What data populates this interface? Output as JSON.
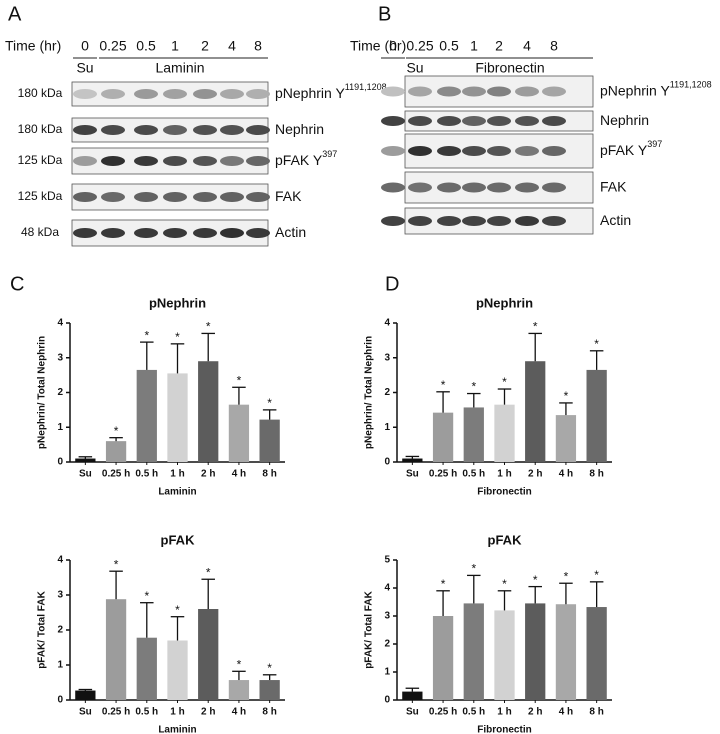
{
  "blots": [
    {
      "letter": "A",
      "time_label": "Time (hr)",
      "times": [
        "0",
        "0.25",
        "0.5",
        "1",
        "2",
        "4",
        "8"
      ],
      "su": "Su",
      "treatment": "Laminin",
      "rows": [
        {
          "kda": "180 kDa",
          "label": "pNephrin Y",
          "sup": "1191,1208"
        },
        {
          "kda": "180 kDa",
          "label": "Nephrin"
        },
        {
          "kda": "125 kDa",
          "label": "pFAK Y",
          "sup": "397"
        },
        {
          "kda": "125 kDa",
          "label": "FAK"
        },
        {
          "kda": "48 kDa",
          "label": "Actin"
        }
      ]
    },
    {
      "letter": "B",
      "time_label": "Time (hr)",
      "times": [
        "0",
        "0.25",
        "0.5",
        "1",
        "2",
        "4",
        "8"
      ],
      "su": "Su",
      "treatment": "Fibronectin",
      "rows": [
        {
          "label": "pNephrin Y",
          "sup": "1191,1208"
        },
        {
          "label": "Nephrin"
        },
        {
          "label": "pFAK Y",
          "sup": "397"
        },
        {
          "label": "FAK"
        },
        {
          "label": "Actin"
        }
      ]
    }
  ],
  "chart_letters": [
    "C",
    "D"
  ],
  "chart_data": [
    {
      "type": "bar",
      "title": "pNephrin",
      "x_label": "Laminin",
      "y_label": "pNephrin/ Total Nephrin",
      "categories": [
        "Su",
        "0.25 h",
        "0.5 h",
        "1 h",
        "2 h",
        "4 h",
        "8 h"
      ],
      "values": [
        0.1,
        0.6,
        2.65,
        2.55,
        2.9,
        1.65,
        1.22
      ],
      "errors": [
        0.05,
        0.1,
        0.8,
        0.85,
        0.8,
        0.5,
        0.28
      ],
      "significance": [
        null,
        "*",
        "*",
        "*",
        "*",
        "*",
        "*"
      ],
      "colors": [
        "#111111",
        "#9c9c9c",
        "#7c7c7c",
        "#d2d2d2",
        "#5c5c5c",
        "#a8a8a8",
        "#6a6a6a"
      ],
      "ylim": [
        0,
        4
      ],
      "yticks": [
        0,
        1,
        2,
        3,
        4
      ]
    },
    {
      "type": "bar",
      "title": "pNephrin",
      "x_label": "Fibronectin",
      "y_label": "pNephrin/ Total Nephrin",
      "categories": [
        "Su",
        "0.25 h",
        "0.5 h",
        "1 h",
        "2 h",
        "4 h",
        "8 h"
      ],
      "values": [
        0.1,
        1.42,
        1.57,
        1.65,
        2.9,
        1.35,
        2.65
      ],
      "errors": [
        0.06,
        0.6,
        0.4,
        0.45,
        0.8,
        0.35,
        0.55
      ],
      "significance": [
        null,
        "*",
        "*",
        "*",
        "*",
        "*",
        "*"
      ],
      "colors": [
        "#111111",
        "#9c9c9c",
        "#7c7c7c",
        "#d2d2d2",
        "#5c5c5c",
        "#a8a8a8",
        "#6a6a6a"
      ],
      "ylim": [
        0,
        4
      ],
      "yticks": [
        0,
        1,
        2,
        3,
        4
      ]
    },
    {
      "type": "bar",
      "title": "pFAK",
      "x_label": "Laminin",
      "y_label": "pFAK/ Total FAK",
      "categories": [
        "Su",
        "0.25 h",
        "0.5 h",
        "1 h",
        "2 h",
        "4 h",
        "8 h"
      ],
      "values": [
        0.27,
        2.88,
        1.78,
        1.7,
        2.6,
        0.57,
        0.57
      ],
      "errors": [
        0.03,
        0.8,
        1.0,
        0.68,
        0.85,
        0.25,
        0.15
      ],
      "significance": [
        null,
        "*",
        "*",
        "*",
        "*",
        "*",
        "*"
      ],
      "colors": [
        "#111111",
        "#9c9c9c",
        "#7c7c7c",
        "#d2d2d2",
        "#5c5c5c",
        "#a8a8a8",
        "#6a6a6a"
      ],
      "ylim": [
        0,
        4
      ],
      "yticks": [
        0,
        1,
        2,
        3,
        4
      ]
    },
    {
      "type": "bar",
      "title": "pFAK",
      "x_label": "Fibronectin",
      "y_label": "pFAK/ Total FAK",
      "categories": [
        "Su",
        "0.25 h",
        "0.5 h",
        "1 h",
        "2 h",
        "4 h",
        "8 h"
      ],
      "values": [
        0.3,
        3.0,
        3.45,
        3.2,
        3.45,
        3.42,
        3.32
      ],
      "errors": [
        0.12,
        0.9,
        1.0,
        0.7,
        0.6,
        0.75,
        0.9
      ],
      "significance": [
        null,
        "*",
        "*",
        "*",
        "*",
        "*",
        "*"
      ],
      "colors": [
        "#111111",
        "#9c9c9c",
        "#7c7c7c",
        "#d2d2d2",
        "#5c5c5c",
        "#a8a8a8",
        "#6a6a6a"
      ],
      "ylim": [
        0,
        5
      ],
      "yticks": [
        0,
        1,
        2,
        3,
        4,
        5
      ]
    }
  ]
}
